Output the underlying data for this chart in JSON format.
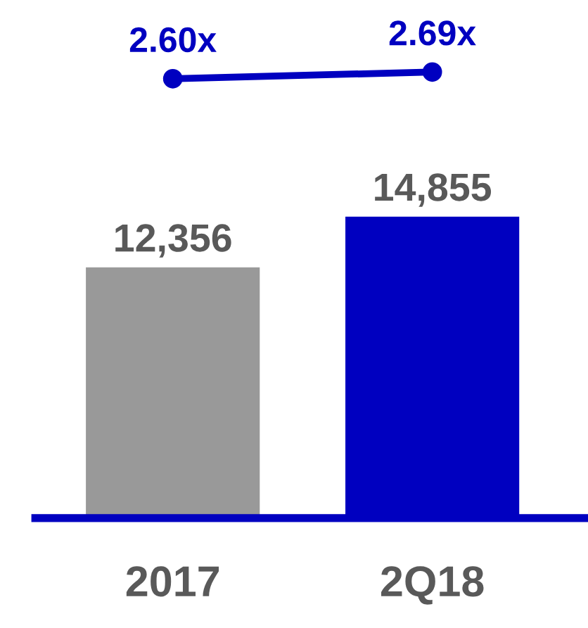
{
  "chart_data": [
    {
      "type": "line",
      "categories": [
        null,
        null
      ],
      "data_labels": true,
      "series": [
        {
          "color": "#0000c0",
          "marker": "circle",
          "values": [
            2.6,
            2.69
          ],
          "value_labels": [
            "2.60x",
            "2.69x"
          ]
        }
      ],
      "grid": false,
      "legend": false,
      "tick_labels": false
    },
    {
      "type": "bar",
      "categories": [
        "2017",
        "2Q18"
      ],
      "data_labels": true,
      "series": [
        {
          "type": "bar",
          "colors": [
            "#999999",
            "#0000c0"
          ],
          "values": [
            12356,
            14855
          ],
          "value_labels": [
            "12,356",
            "14,855"
          ]
        }
      ],
      "grid": false,
      "legend": false
    }
  ]
}
